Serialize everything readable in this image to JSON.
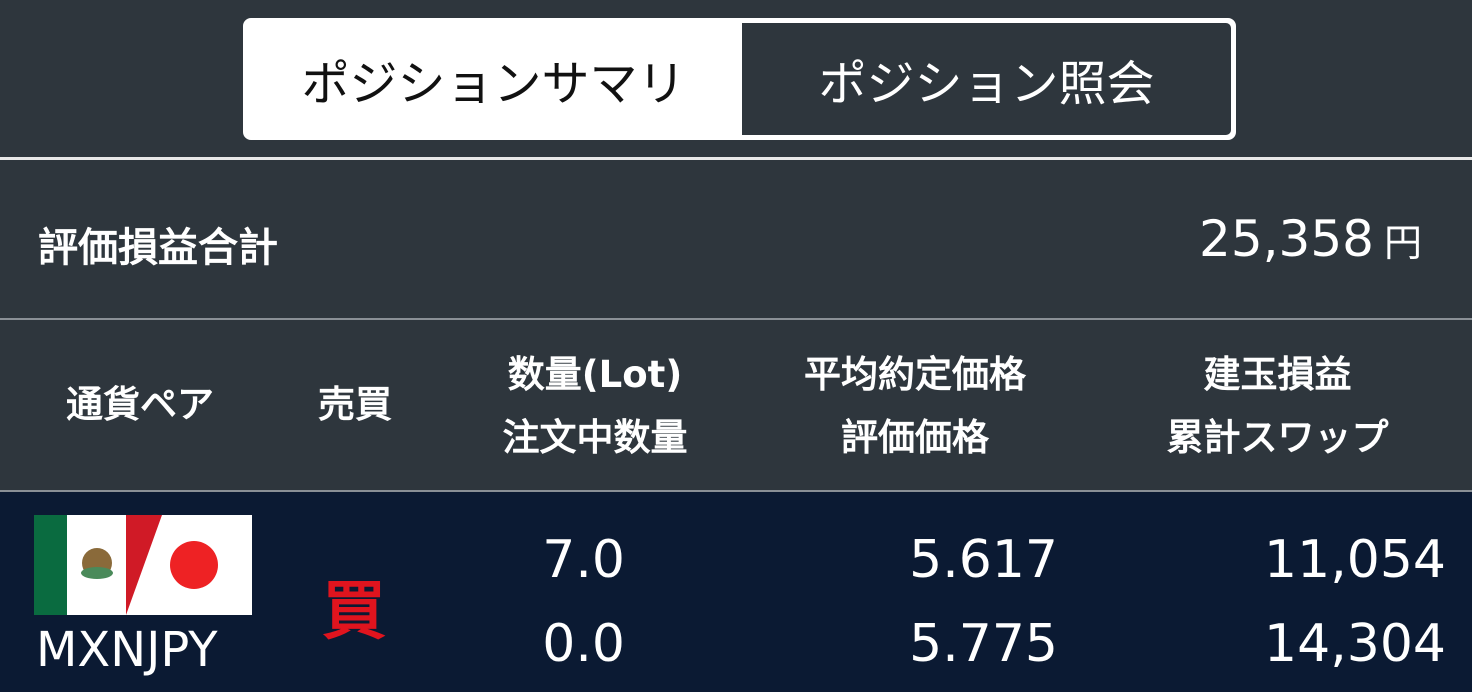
{
  "tabs": [
    {
      "label": "ポジションサマリ",
      "active": true
    },
    {
      "label": "ポジション照会",
      "active": false
    }
  ],
  "summary": {
    "label": "評価損益合計",
    "value": "25,358",
    "unit": "円"
  },
  "headers": {
    "pair": "通貨ペア",
    "side": "売買",
    "qty1": "数量(Lot)",
    "qty2": "注文中数量",
    "price1": "平均約定価格",
    "price2": "評価価格",
    "pl1": "建玉損益",
    "pl2": "累計スワップ"
  },
  "rows": [
    {
      "pair": "MXNJPY",
      "flags": [
        "mexico-flag",
        "japan-flag"
      ],
      "side": "買",
      "side_color": "#e0141e",
      "qty": "7.0",
      "pending_qty": "0.0",
      "avg_price": "5.617",
      "eval_price": "5.775",
      "pl": "11,054",
      "swap": "14,304"
    }
  ]
}
